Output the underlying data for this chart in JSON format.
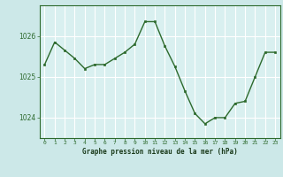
{
  "x": [
    0,
    1,
    2,
    3,
    4,
    5,
    6,
    7,
    8,
    9,
    10,
    11,
    12,
    13,
    14,
    15,
    16,
    17,
    18,
    19,
    20,
    21,
    22,
    23
  ],
  "y": [
    1025.3,
    1025.85,
    1025.65,
    1025.45,
    1025.2,
    1025.3,
    1025.3,
    1025.45,
    1025.6,
    1025.8,
    1026.35,
    1026.35,
    1025.75,
    1025.25,
    1024.65,
    1024.1,
    1023.85,
    1024.0,
    1024.0,
    1024.35,
    1024.4,
    1025.0,
    1025.6,
    1025.6
  ],
  "line_color": "#2d6a2d",
  "marker": "s",
  "marker_size": 2.0,
  "bg_color": "#cce8e8",
  "plot_bg_color": "#d9f0f0",
  "grid_color": "#ffffff",
  "xlabel": "Graphe pression niveau de la mer (hPa)",
  "xlabel_color": "#1a3a1a",
  "tick_color": "#2d6a2d",
  "yticks": [
    1024,
    1025,
    1026
  ],
  "ylim": [
    1023.5,
    1026.75
  ],
  "xlim": [
    -0.5,
    23.5
  ],
  "xtick_labels": [
    "0",
    "1",
    "2",
    "3",
    "4",
    "5",
    "6",
    "7",
    "8",
    "9",
    "10",
    "11",
    "12",
    "13",
    "14",
    "15",
    "16",
    "17",
    "18",
    "19",
    "20",
    "21",
    "22",
    "23"
  ]
}
